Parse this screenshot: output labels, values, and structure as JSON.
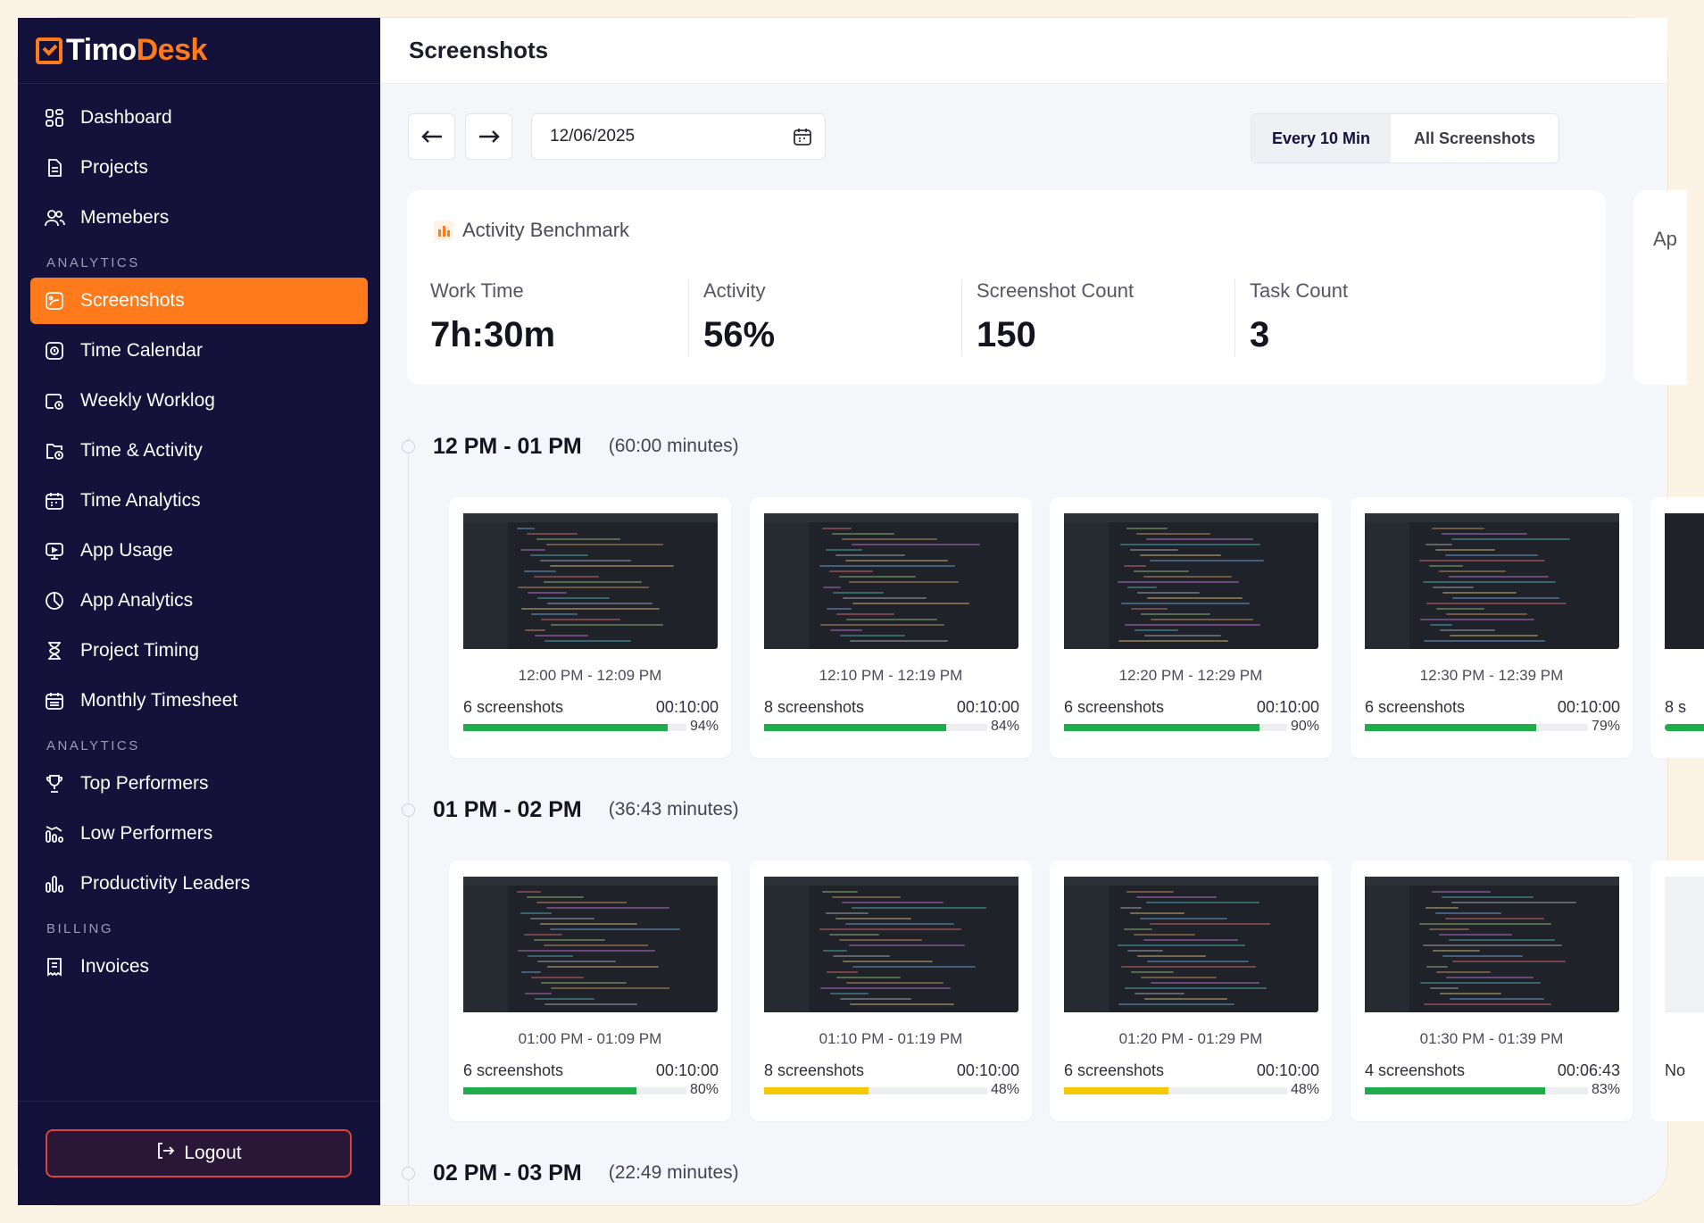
{
  "brand": {
    "name_part1": "Timo",
    "name_part2": "Desk",
    "accent": "#ff7a1a",
    "sidebar_bg": "#14123a"
  },
  "page_title": "Screenshots",
  "sidebar": {
    "items_top": [
      {
        "label": "Dashboard",
        "icon": "dashboard-icon"
      },
      {
        "label": "Projects",
        "icon": "document-icon"
      },
      {
        "label": "Memebers",
        "icon": "users-icon"
      }
    ],
    "section1": "ANALYTICS",
    "items_analytics": [
      {
        "label": "Screenshots",
        "icon": "screenshot-icon",
        "active": true
      },
      {
        "label": "Time Calendar",
        "icon": "clock-square-icon"
      },
      {
        "label": "Weekly Worklog",
        "icon": "calendar-clock-icon"
      },
      {
        "label": "Time & Activity",
        "icon": "folder-clock-icon"
      },
      {
        "label": "Time Analytics",
        "icon": "calendar-icon"
      },
      {
        "label": "App Usage",
        "icon": "monitor-icon"
      },
      {
        "label": "App Analytics",
        "icon": "pie-icon"
      },
      {
        "label": "Project Timing",
        "icon": "hourglass-icon"
      },
      {
        "label": "Monthly Timesheet",
        "icon": "calendar-grid-icon"
      }
    ],
    "section2": "ANALYTICS",
    "items_performance": [
      {
        "label": "Top Performers",
        "icon": "trophy-icon"
      },
      {
        "label": "Low Performers",
        "icon": "low-chart-icon"
      },
      {
        "label": "Productivity Leaders",
        "icon": "bars-icon"
      }
    ],
    "section3": "BILLING",
    "items_billing": [
      {
        "label": "Invoices",
        "icon": "invoice-icon"
      }
    ],
    "logout_label": "Logout"
  },
  "controls": {
    "date": "12/06/2025",
    "seg_on": "Every 10 Min",
    "seg_off": "All Screenshots"
  },
  "benchmark": {
    "title": "Activity Benchmark",
    "peek_text": "Ap",
    "stats": [
      {
        "label": "Work Time",
        "value": "7h:30m"
      },
      {
        "label": "Activity",
        "value": "56%"
      },
      {
        "label": "Screenshot Count",
        "value": "150"
      },
      {
        "label": "Task Count",
        "value": "3"
      }
    ]
  },
  "hours": [
    {
      "label": "12 PM - 01 PM",
      "minutes": "(60:00 minutes)",
      "peek_text": "8 s",
      "cards": [
        {
          "range": "12:00 PM - 12:09 PM",
          "count": "6 screenshots",
          "duration": "00:10:00",
          "pct": "94%",
          "activity": 0.94,
          "color": "#1fad4c"
        },
        {
          "range": "12:10 PM - 12:19 PM",
          "count": "8 screenshots",
          "duration": "00:10:00",
          "pct": "84%",
          "activity": 0.84,
          "color": "#1fad4c"
        },
        {
          "range": "12:20 PM - 12:29 PM",
          "count": "6 screenshots",
          "duration": "00:10:00",
          "pct": "90%",
          "activity": 0.9,
          "color": "#1fad4c"
        },
        {
          "range": "12:30 PM - 12:39 PM",
          "count": "6 screenshots",
          "duration": "00:10:00",
          "pct": "79%",
          "activity": 0.79,
          "color": "#1fad4c"
        }
      ]
    },
    {
      "label": "01 PM - 02 PM",
      "minutes": "(36:43 minutes)",
      "peek_text": "No",
      "cards": [
        {
          "range": "01:00 PM - 01:09 PM",
          "count": "6 screenshots",
          "duration": "00:10:00",
          "pct": "80%",
          "activity": 0.8,
          "color": "#1fad4c"
        },
        {
          "range": "01:10 PM - 01:19 PM",
          "count": "8 screenshots",
          "duration": "00:10:00",
          "pct": "48%",
          "activity": 0.48,
          "color": "#f5c800"
        },
        {
          "range": "01:20 PM - 01:29 PM",
          "count": "6 screenshots",
          "duration": "00:10:00",
          "pct": "48%",
          "activity": 0.48,
          "color": "#f5c800"
        },
        {
          "range": "01:30 PM - 01:39 PM",
          "count": "4 screenshots",
          "duration": "00:06:43",
          "pct": "83%",
          "activity": 0.83,
          "color": "#1fad4c"
        }
      ]
    },
    {
      "label": "02 PM - 03 PM",
      "minutes": "(22:49 minutes)",
      "cards": []
    }
  ]
}
